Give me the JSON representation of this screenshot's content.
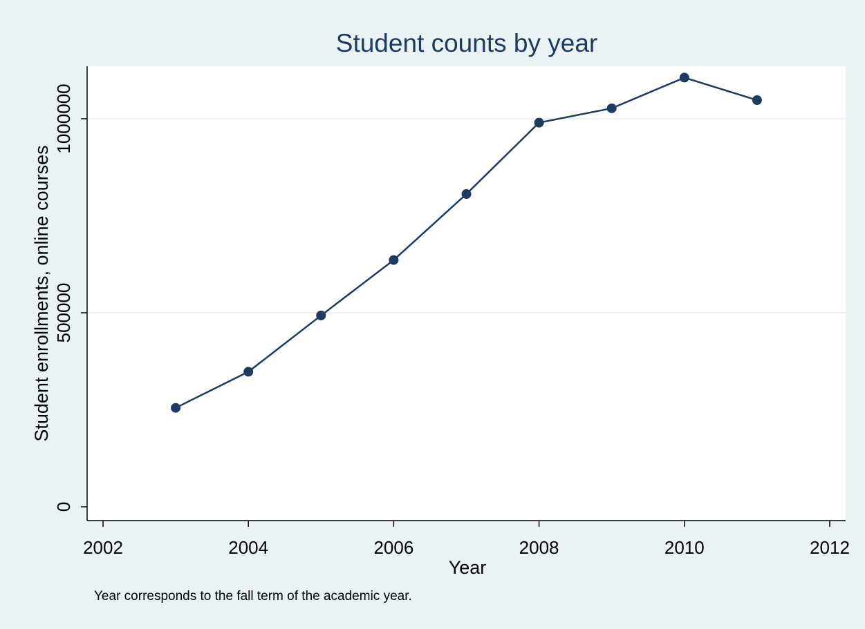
{
  "chart_data": {
    "type": "line",
    "title": "Student counts by year",
    "xlabel": "Year",
    "ylabel": "Student enrollments, online courses",
    "note": "Year corresponds to the fall term of the academic year.",
    "xlim": [
      2002,
      2012
    ],
    "ylim": [
      0,
      1100000
    ],
    "x_ticks": [
      2002,
      2004,
      2006,
      2008,
      2010,
      2012
    ],
    "y_ticks": [
      0,
      500000,
      1000000
    ],
    "y_gridlines": [
      500000,
      1000000
    ],
    "grid": true,
    "series": [
      {
        "x": [
          2003,
          2004,
          2005,
          2006,
          2007,
          2008,
          2009,
          2010,
          2011
        ],
        "y": [
          255000,
          348000,
          493000,
          636000,
          806000,
          990000,
          1027000,
          1106000,
          1048000
        ]
      }
    ],
    "colors": {
      "line": "#1e3a5f",
      "marker": "#1e3a5f",
      "background": "#eaf2f3",
      "plot_area": "#ffffff",
      "grid": "#eaf2f3"
    }
  }
}
